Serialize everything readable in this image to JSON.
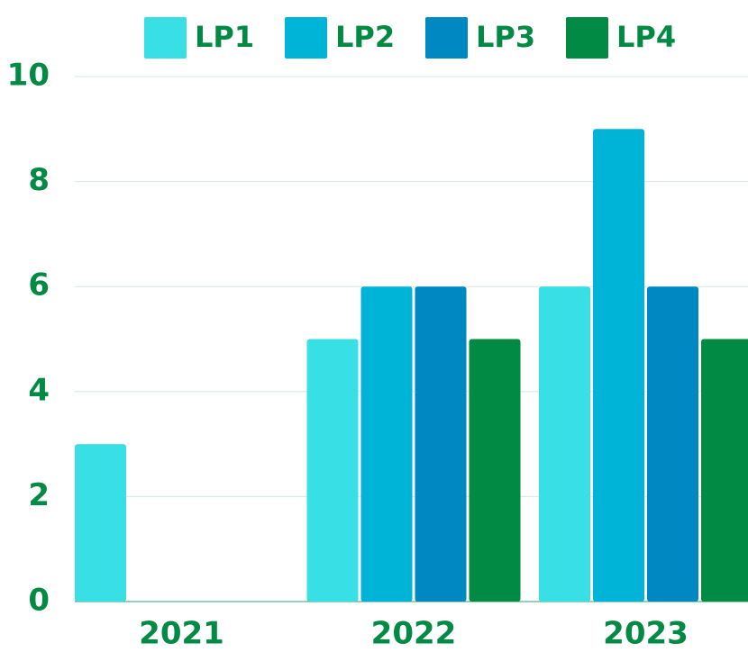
{
  "chart_data": {
    "type": "bar",
    "categories": [
      "2021",
      "2022",
      "2023"
    ],
    "series": [
      {
        "name": "LP1",
        "color": "#38e0e6",
        "values": [
          3,
          5,
          6
        ]
      },
      {
        "name": "LP2",
        "color": "#00b4d8",
        "values": [
          0,
          6,
          9
        ]
      },
      {
        "name": "LP3",
        "color": "#0088c2",
        "values": [
          0,
          6,
          6
        ]
      },
      {
        "name": "LP4",
        "color": "#008a44",
        "values": [
          0,
          5,
          5
        ]
      }
    ],
    "ylim": [
      0,
      10
    ],
    "yticks": [
      0,
      2,
      4,
      6,
      8,
      10
    ],
    "grid": true,
    "legend": "top"
  }
}
